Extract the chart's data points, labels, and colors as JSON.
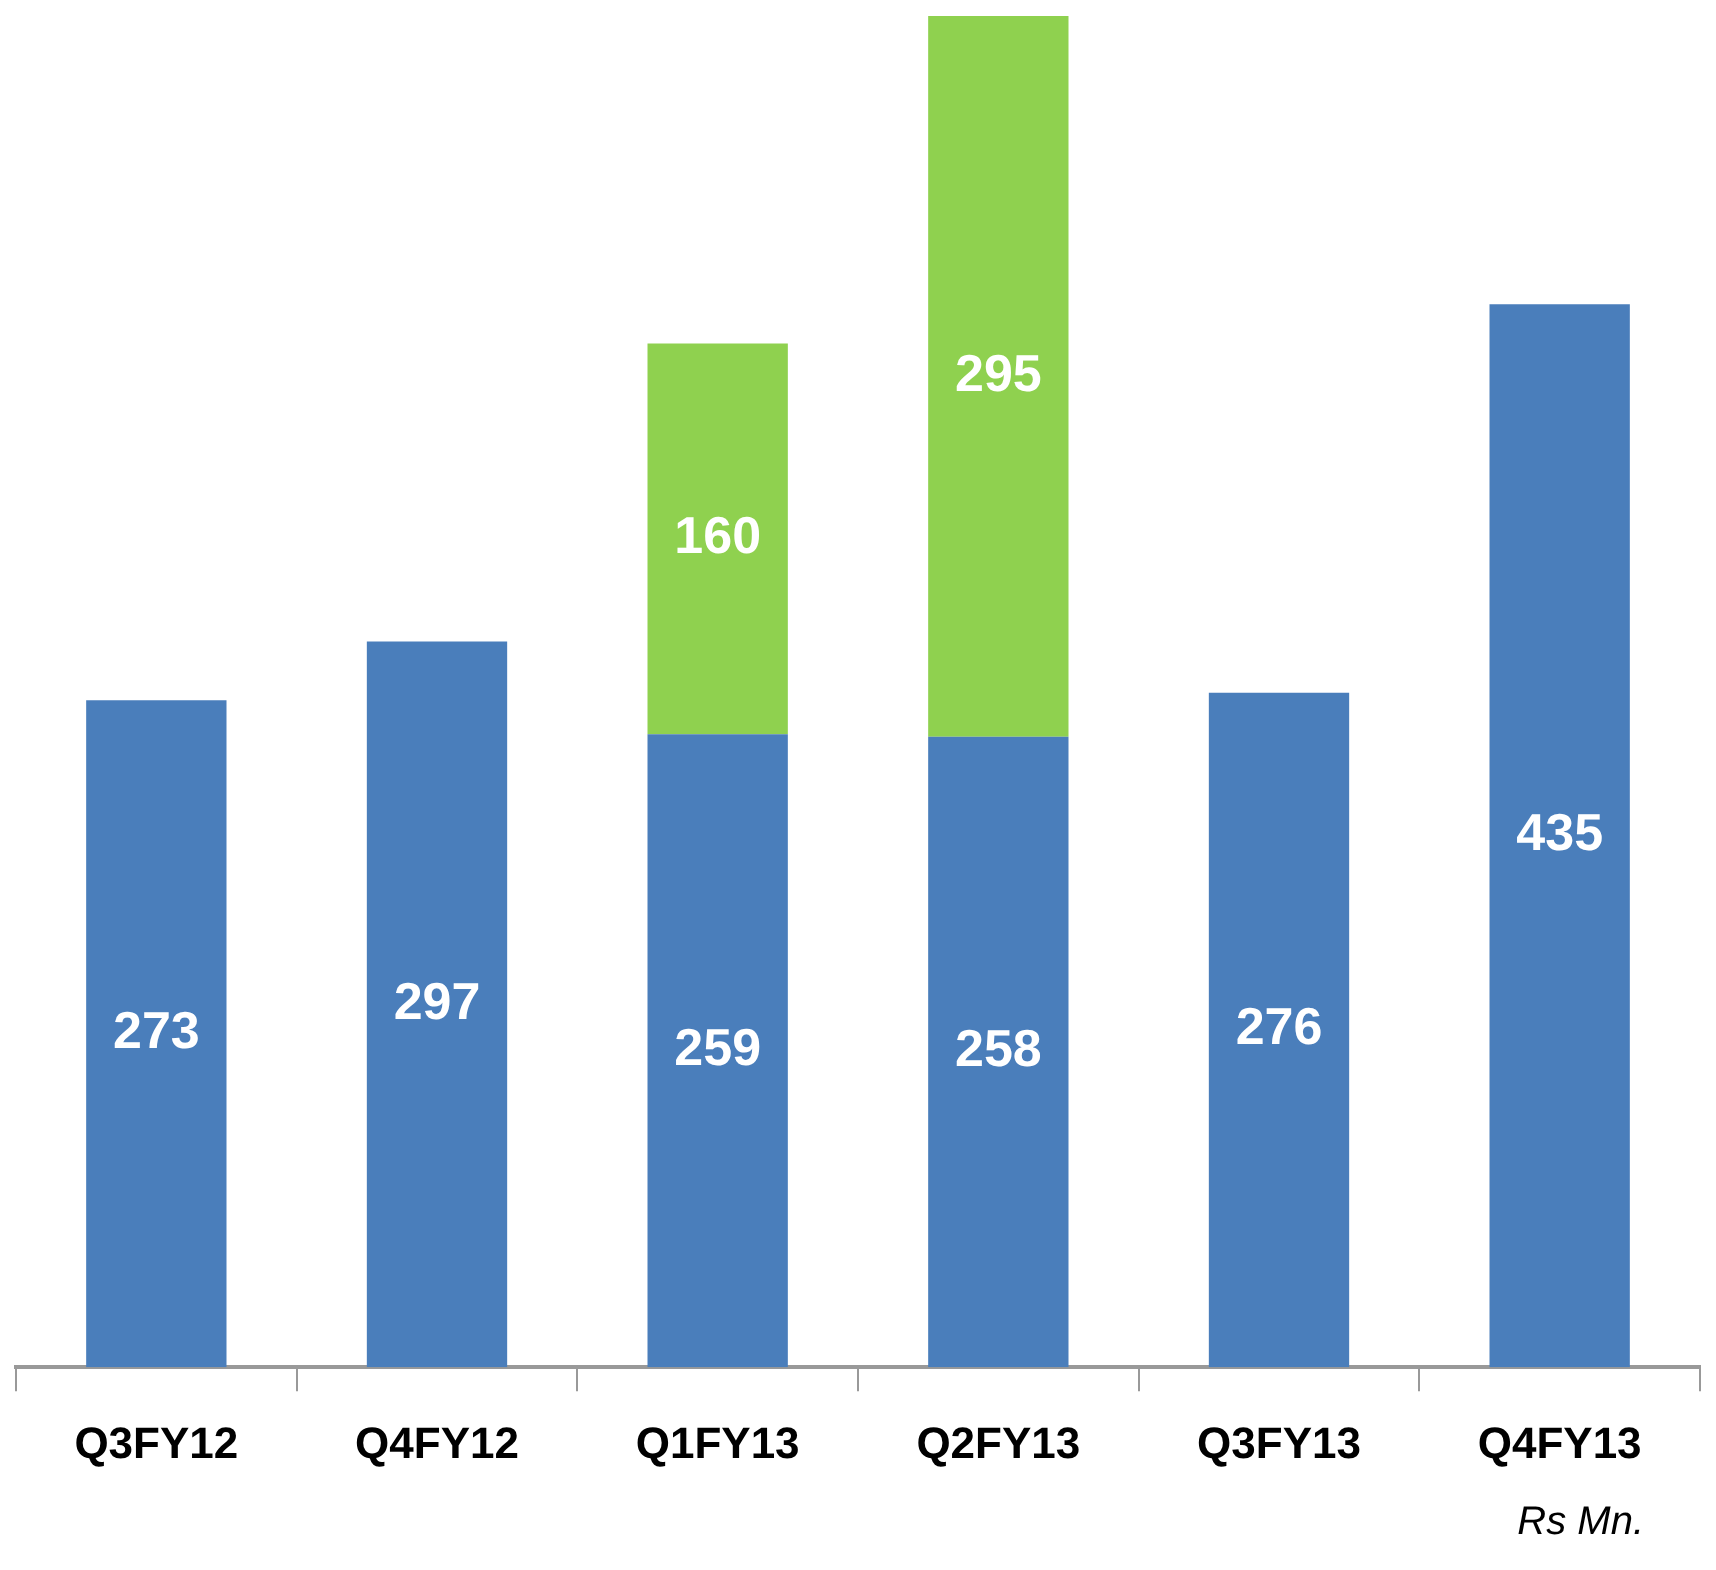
{
  "chart_data": {
    "type": "bar",
    "stacked": true,
    "categories": [
      "Q3FY12",
      "Q4FY12",
      "Q1FY13",
      "Q2FY13",
      "Q3FY13",
      "Q4FY13"
    ],
    "series": [
      {
        "color": "#4a7ebb",
        "values": [
          273,
          297,
          259,
          258,
          276,
          435
        ]
      },
      {
        "color": "#8fd14f",
        "values": [
          null,
          null,
          160,
          295,
          null,
          null
        ]
      }
    ],
    "data_labels": true,
    "legend": false,
    "grid": false,
    "annotations": [
      "Rs Mn."
    ]
  }
}
